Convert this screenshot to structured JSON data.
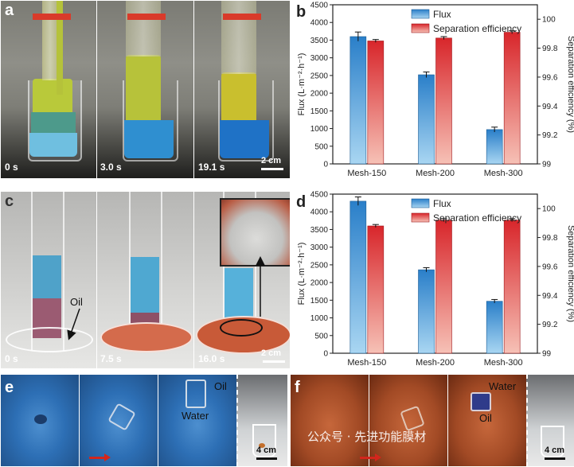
{
  "panels": {
    "a": {
      "label": "a",
      "times": [
        "0 s",
        "3.0 s",
        "19.1 s"
      ],
      "scale": "2 cm"
    },
    "c": {
      "label": "c",
      "times": [
        "0 s",
        "7.5 s",
        "16.0 s"
      ],
      "scale": "2 cm",
      "oil_label": "Oil"
    },
    "e": {
      "label": "e",
      "oil_label": "Oil",
      "water_label": "Water",
      "scale": "4 cm"
    },
    "f": {
      "label": "f",
      "water_label": "Water",
      "oil_label": "Oil",
      "scale": "4 cm"
    }
  },
  "watermark": "公众号 · 先进功能膜材",
  "colors": {
    "flux": "#2a7fc9",
    "flux_light": "#a9d6f2",
    "sep": "#d8262b",
    "sep_light": "#f6c1b6"
  },
  "chart_data": [
    {
      "panel": "b",
      "type": "bar",
      "categories": [
        "Mesh-150",
        "Mesh-200",
        "Mesh-300"
      ],
      "series": [
        {
          "name": "Flux",
          "axis": "left",
          "values": [
            3600,
            2520,
            970
          ],
          "errors": [
            130,
            80,
            70
          ]
        },
        {
          "name": "Separation efficiency",
          "axis": "right",
          "values": [
            99.85,
            99.87,
            99.91
          ],
          "errors": [
            0.01,
            0.01,
            0.01
          ]
        }
      ],
      "ylabel": "Flux (L·m⁻²·h⁻¹)",
      "y2label": "Separation efficiency (%)",
      "ylim": [
        0,
        4500
      ],
      "yticks": [
        0,
        500,
        1000,
        1500,
        2000,
        2500,
        3000,
        3500,
        4000,
        4500
      ],
      "y2lim": [
        99,
        100.1
      ],
      "y2ticks": [
        99,
        99.2,
        99.4,
        99.6,
        99.8,
        100
      ],
      "legend": "top-center"
    },
    {
      "panel": "d",
      "type": "bar",
      "categories": [
        "Mesh-150",
        "Mesh-200",
        "Mesh-300"
      ],
      "series": [
        {
          "name": "Flux",
          "axis": "left",
          "values": [
            4300,
            2360,
            1470
          ],
          "errors": [
            120,
            60,
            50
          ]
        },
        {
          "name": "Separation efficiency",
          "axis": "right",
          "values": [
            99.88,
            99.92,
            99.92
          ],
          "errors": [
            0.01,
            0.01,
            0.01
          ]
        }
      ],
      "ylabel": "Flux (L·m⁻²·h⁻¹)",
      "y2label": "Separation efficiency (%)",
      "ylim": [
        0,
        4500
      ],
      "yticks": [
        0,
        500,
        1000,
        1500,
        2000,
        2500,
        3000,
        3500,
        4000,
        4500
      ],
      "y2lim": [
        99,
        100.1
      ],
      "y2ticks": [
        99,
        99.2,
        99.4,
        99.6,
        99.8,
        100
      ],
      "legend": "top-center"
    }
  ]
}
